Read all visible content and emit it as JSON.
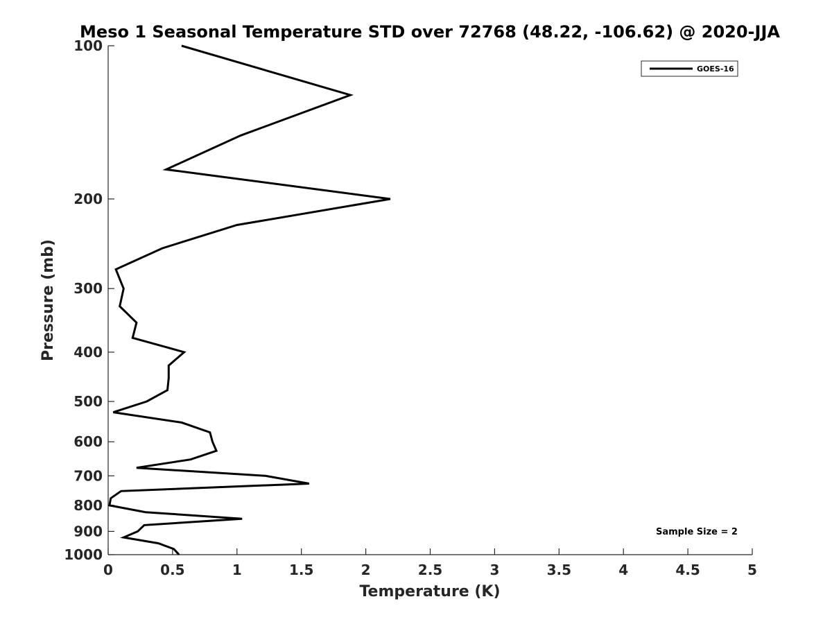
{
  "chart_data": {
    "type": "line",
    "title": "Meso 1 Seasonal Temperature STD over 72768 (48.22, -106.62) @ 2020-JJA",
    "xlabel": "Temperature (K)",
    "ylabel": "Pressure (mb)",
    "xlim": [
      0,
      5
    ],
    "ylim": [
      100,
      1000
    ],
    "y_scale": "log",
    "y_reversed": true,
    "xticks": [
      "0",
      "0.5",
      "1",
      "1.5",
      "2",
      "2.5",
      "3",
      "3.5",
      "4",
      "4.5",
      "5"
    ],
    "yticks": [
      "100",
      "200",
      "300",
      "400",
      "500",
      "600",
      "700",
      "800",
      "900",
      "1000"
    ],
    "grid": false,
    "legend_position": "top-right",
    "series": [
      {
        "name": "GOES-16",
        "color": "#000000",
        "points": [
          {
            "x": 0.57,
            "y": 100
          },
          {
            "x": 1.88,
            "y": 125
          },
          {
            "x": 1.03,
            "y": 150
          },
          {
            "x": 0.45,
            "y": 175
          },
          {
            "x": 2.19,
            "y": 200
          },
          {
            "x": 1.0,
            "y": 225
          },
          {
            "x": 0.42,
            "y": 250
          },
          {
            "x": 0.06,
            "y": 275
          },
          {
            "x": 0.12,
            "y": 300
          },
          {
            "x": 0.09,
            "y": 325
          },
          {
            "x": 0.22,
            "y": 350
          },
          {
            "x": 0.19,
            "y": 375
          },
          {
            "x": 0.59,
            "y": 400
          },
          {
            "x": 0.47,
            "y": 425
          },
          {
            "x": 0.47,
            "y": 450
          },
          {
            "x": 0.46,
            "y": 475
          },
          {
            "x": 0.3,
            "y": 500
          },
          {
            "x": 0.04,
            "y": 525
          },
          {
            "x": 0.57,
            "y": 550
          },
          {
            "x": 0.79,
            "y": 575
          },
          {
            "x": 0.81,
            "y": 600
          },
          {
            "x": 0.84,
            "y": 625
          },
          {
            "x": 0.64,
            "y": 650
          },
          {
            "x": 0.22,
            "y": 675
          },
          {
            "x": 1.22,
            "y": 700
          },
          {
            "x": 1.56,
            "y": 725
          },
          {
            "x": 0.1,
            "y": 750
          },
          {
            "x": 0.02,
            "y": 775
          },
          {
            "x": 0.01,
            "y": 800
          },
          {
            "x": 0.29,
            "y": 825
          },
          {
            "x": 1.04,
            "y": 850
          },
          {
            "x": 0.28,
            "y": 875
          },
          {
            "x": 0.23,
            "y": 900
          },
          {
            "x": 0.12,
            "y": 925
          },
          {
            "x": 0.39,
            "y": 950
          },
          {
            "x": 0.51,
            "y": 975
          },
          {
            "x": 0.55,
            "y": 1000
          }
        ]
      }
    ],
    "annotation": "Sample Size = 2"
  }
}
